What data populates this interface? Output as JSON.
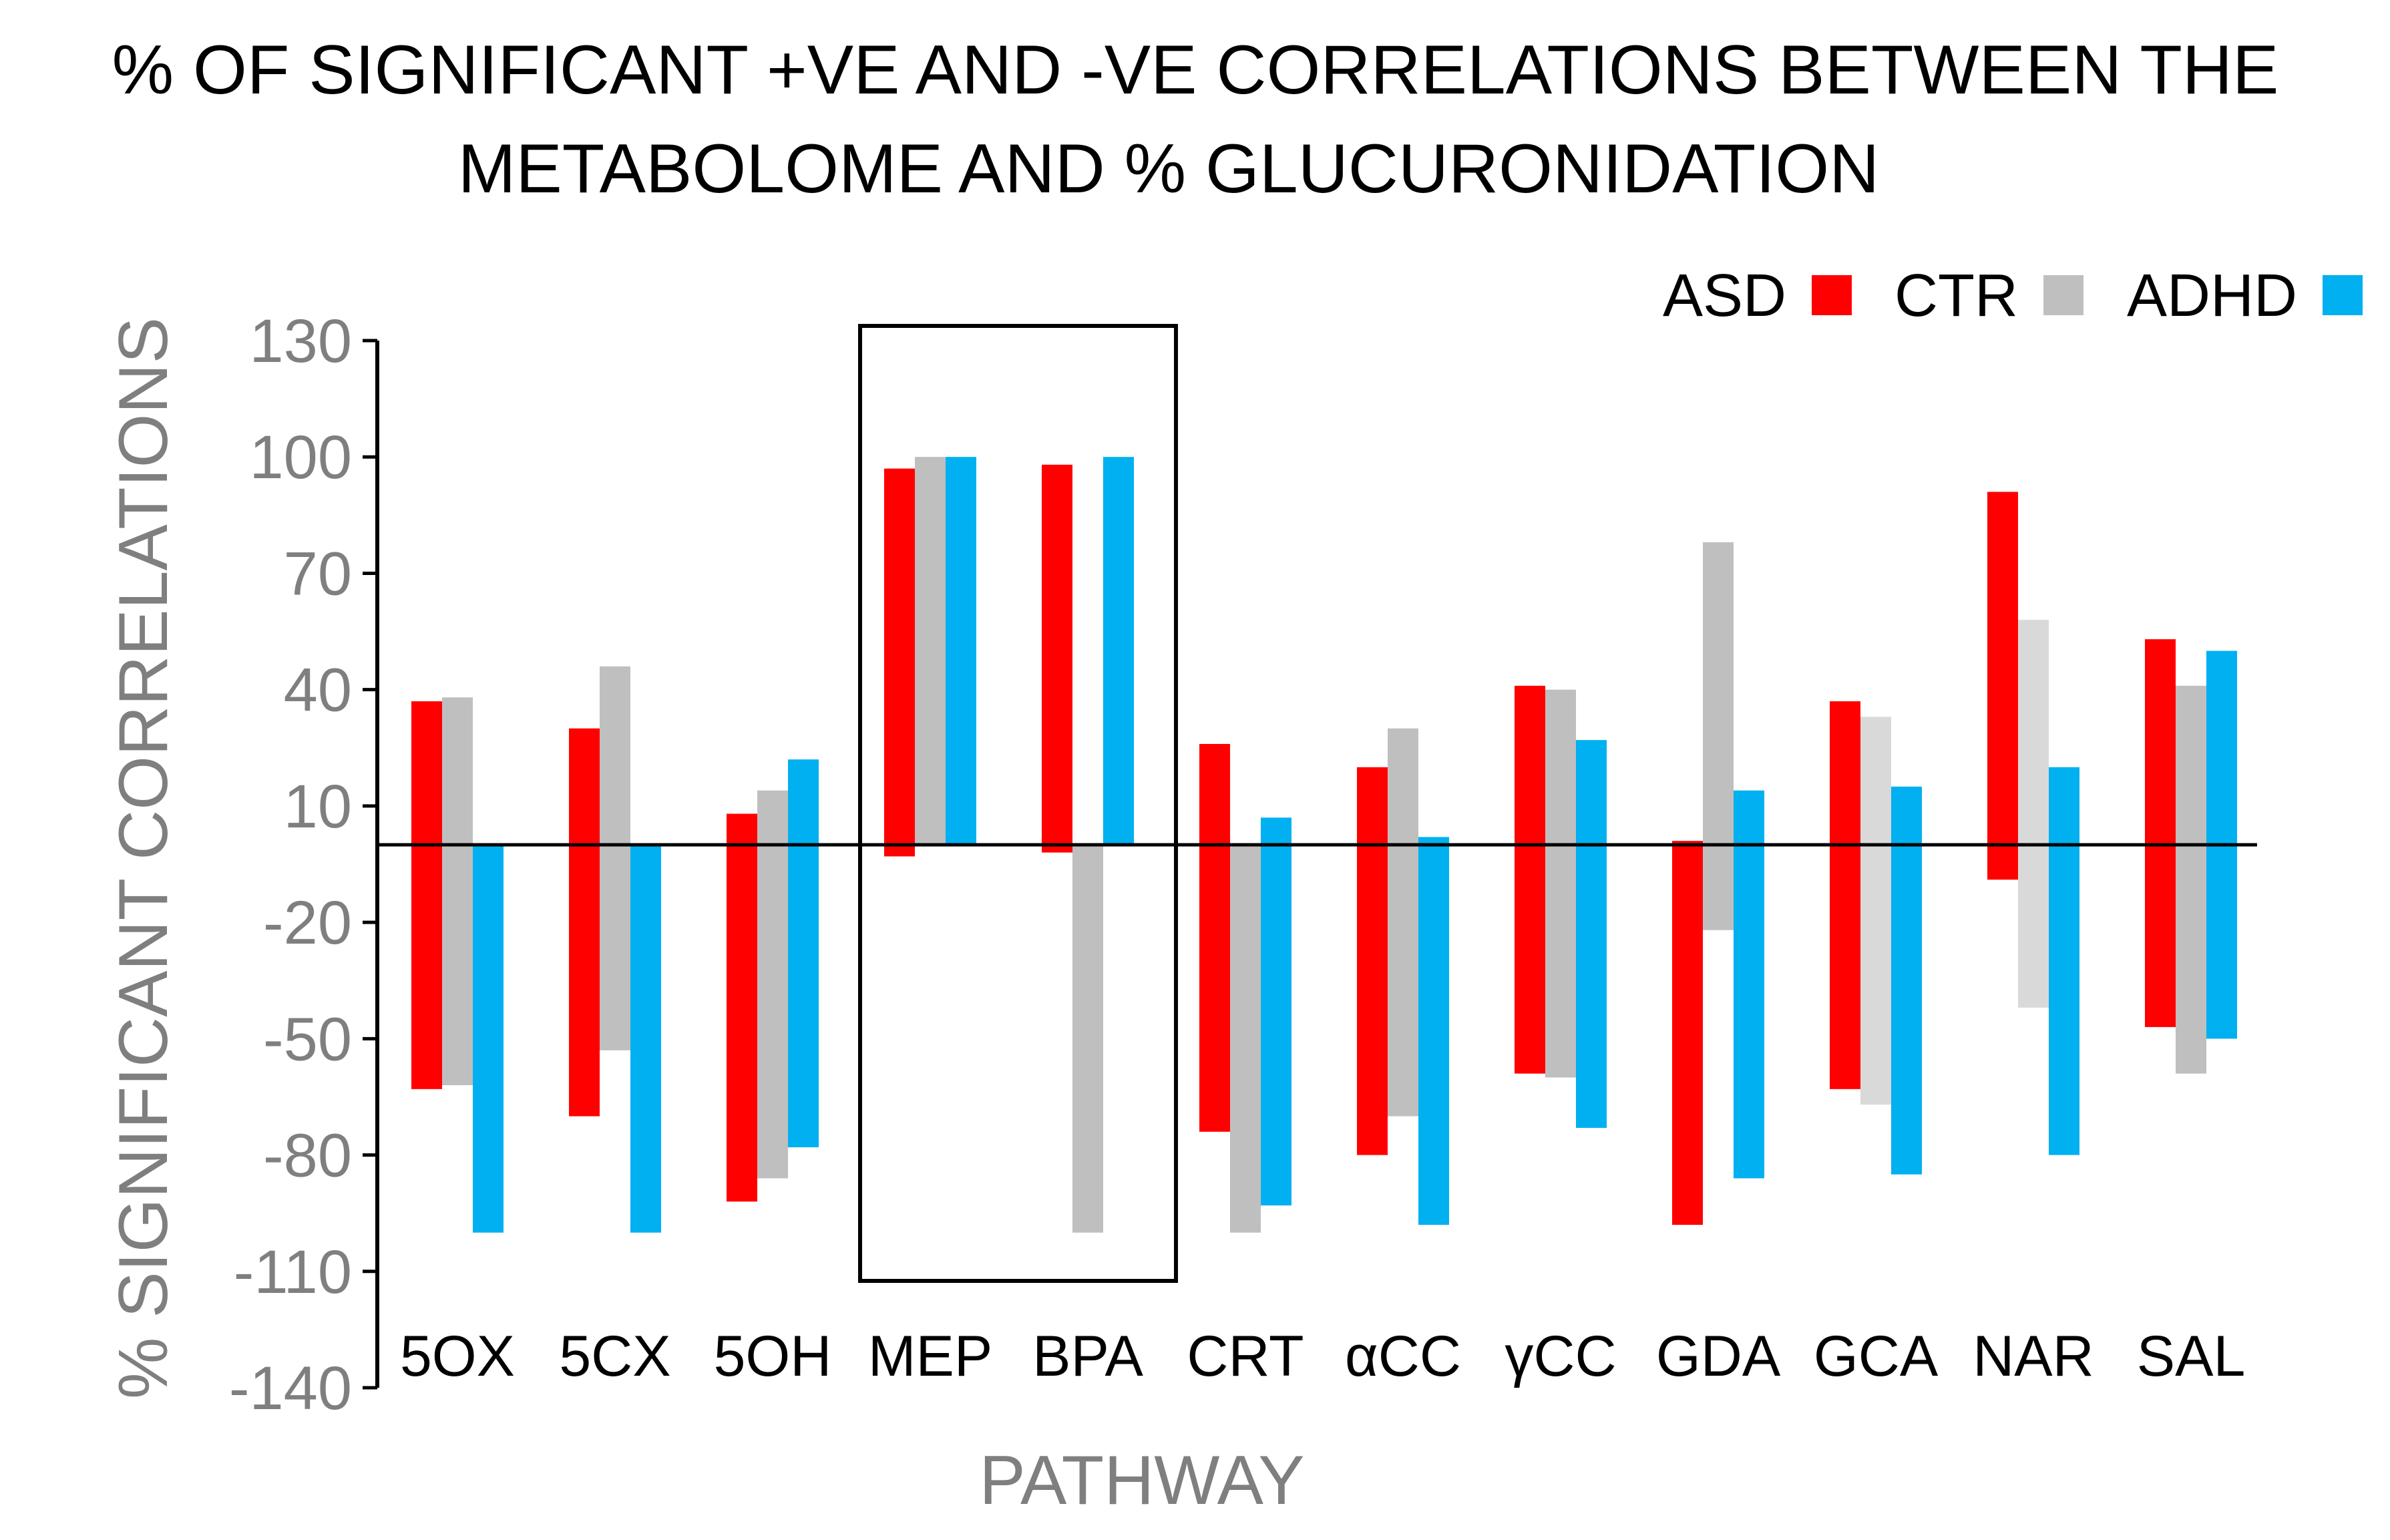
{
  "chart_data": {
    "type": "bar",
    "subtype": "floating-range",
    "title_lines": [
      "% OF SIGNIFICANT  +VE AND -VE CORRELATIONS BETWEEN THE",
      "METABOLOME  AND % GLUCURONIDATION"
    ],
    "xlabel": "PATHWAY",
    "ylabel": "% SIGNIFICANT CORRELATIONS",
    "ylim": [
      -140,
      130
    ],
    "yticks": [
      130,
      100,
      70,
      40,
      10,
      -20,
      -50,
      -80,
      -110,
      -140
    ],
    "baseline": 0,
    "categories": [
      "5OX",
      "5CX",
      "5OH",
      "MEP",
      "BPA",
      "CRT",
      "αCC",
      "γCC",
      "GDA",
      "GCA",
      "NAR",
      "SAL"
    ],
    "highlight_box": [
      "MEP",
      "BPA"
    ],
    "legend_position": "top-right",
    "series": [
      {
        "name": "ASD",
        "color": "#ff0000",
        "positive": [
          37,
          30,
          8,
          97,
          98,
          26,
          20,
          41,
          1,
          37,
          91,
          53
        ],
        "negative": [
          -63,
          -70,
          -92,
          -3,
          -2,
          -74,
          -80,
          -59,
          -98,
          -63,
          -9,
          -47
        ]
      },
      {
        "name": "CTR",
        "color": "#bfbfbf",
        "positive": [
          38,
          46,
          14,
          100,
          0,
          0,
          30,
          40,
          78,
          33,
          58,
          41
        ],
        "negative": [
          -62,
          -53,
          -86,
          0,
          -100,
          -100,
          -70,
          -60,
          -22,
          -67,
          -42,
          -59
        ]
      },
      {
        "name": "ADHD",
        "color": "#00b0f0",
        "positive": [
          0,
          0,
          22,
          100,
          100,
          7,
          2,
          27,
          14,
          15,
          20,
          50
        ],
        "negative": [
          -100,
          -100,
          -78,
          0,
          0,
          -93,
          -98,
          -73,
          -86,
          -85,
          -80,
          -50
        ]
      }
    ]
  }
}
